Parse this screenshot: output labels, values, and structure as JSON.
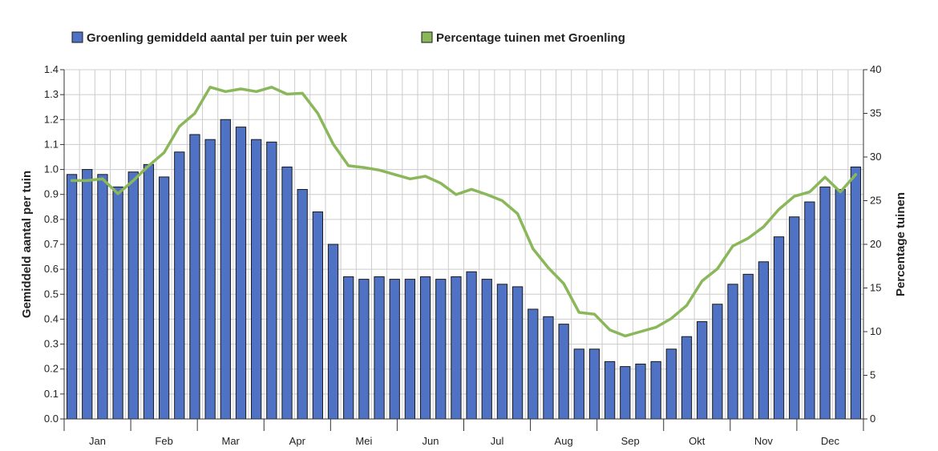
{
  "chart_data": {
    "type": "bar",
    "title": "",
    "xlabel": "",
    "ylabel": "Gemiddeld aantal per tuin",
    "y2label": "Percentage tuinen",
    "ylim": [
      0,
      1.4
    ],
    "y2lim": [
      0,
      40
    ],
    "yticks": [
      "0.0",
      "0.1",
      "0.2",
      "0.3",
      "0.4",
      "0.5",
      "0.6",
      "0.7",
      "0.8",
      "0.9",
      "1.0",
      "1.1",
      "1.2",
      "1.3",
      "1.4"
    ],
    "y2ticks": [
      "0",
      "5",
      "10",
      "15",
      "20",
      "25",
      "30",
      "35",
      "40"
    ],
    "months": [
      "Jan",
      "Feb",
      "Mar",
      "Apr",
      "Mei",
      "Jun",
      "Jul",
      "Aug",
      "Sep",
      "Okt",
      "Nov",
      "Dec"
    ],
    "grid": true,
    "legend_position": "top",
    "colors": {
      "bar": "#4f72c4",
      "bar_border": "#1a1a1a",
      "line": "#8ab75a",
      "grid": "#cccccc"
    },
    "series": [
      {
        "name": "Groenling gemiddeld aantal per tuin per week",
        "type": "bar",
        "axis": "left",
        "values": [
          0.98,
          1.0,
          0.98,
          0.93,
          0.99,
          1.02,
          0.97,
          1.07,
          1.14,
          1.12,
          1.2,
          1.17,
          1.12,
          1.11,
          1.01,
          0.92,
          0.83,
          0.7,
          0.57,
          0.56,
          0.57,
          0.56,
          0.56,
          0.57,
          0.56,
          0.57,
          0.59,
          0.56,
          0.54,
          0.53,
          0.44,
          0.41,
          0.38,
          0.28,
          0.28,
          0.23,
          0.21,
          0.22,
          0.23,
          0.28,
          0.33,
          0.39,
          0.46,
          0.54,
          0.58,
          0.63,
          0.73,
          0.81,
          0.87,
          0.93,
          0.92,
          1.01
        ]
      },
      {
        "name": "Percentage tuinen met Groenling",
        "type": "line",
        "axis": "right",
        "values": [
          27.3,
          27.3,
          27.5,
          25.8,
          27.3,
          29.0,
          30.5,
          33.5,
          35.0,
          38.0,
          37.5,
          37.8,
          37.5,
          38.0,
          37.2,
          37.3,
          35.0,
          31.5,
          29.0,
          28.8,
          28.5,
          28.0,
          27.5,
          27.8,
          27.0,
          25.7,
          26.3,
          25.7,
          25.0,
          23.5,
          19.5,
          17.3,
          15.5,
          12.2,
          12.0,
          10.2,
          9.5,
          10.0,
          10.5,
          11.5,
          13.0,
          15.8,
          17.2,
          19.8,
          20.7,
          22.0,
          24.0,
          25.5,
          26.0,
          27.7,
          26.0,
          28.0
        ]
      }
    ]
  }
}
